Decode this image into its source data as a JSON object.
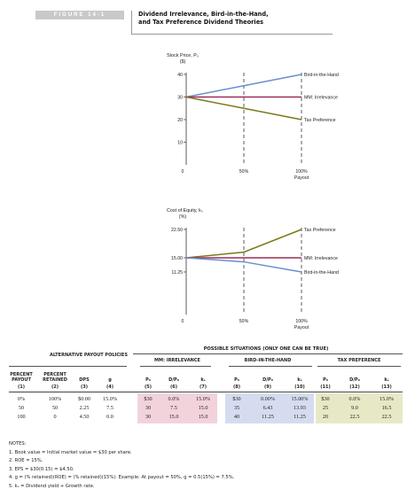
{
  "figure": {
    "badge": "FIGURE 14-1",
    "title_line1": "Dividend Irrelevance, Bird-in-the-Hand,",
    "title_line2": "and Tax Preference Dividend Theories"
  },
  "chart_data": [
    {
      "type": "line",
      "title": "",
      "ylabel_line1": "Stock Price, P₀",
      "ylabel_line2": "($)",
      "xlabel": "Payout",
      "x_ticks": [
        "0",
        "50%",
        "100%"
      ],
      "y_ticks": [
        40,
        30,
        20,
        10
      ],
      "ylim": [
        0,
        40
      ],
      "x": [
        0,
        50,
        100
      ],
      "series": [
        {
          "name": "Bird-in-the-Hand",
          "values": [
            30,
            35,
            40
          ],
          "color": "#6a8fd0"
        },
        {
          "name": "MM: Irrelevance",
          "values": [
            30,
            30,
            30
          ],
          "color": "#9b2d5a"
        },
        {
          "name": "Tax Preference",
          "values": [
            30,
            25,
            20
          ],
          "color": "#7a7a1a"
        }
      ]
    },
    {
      "type": "line",
      "title": "",
      "ylabel_line1": "Cost of Equity, kₛ",
      "ylabel_line2": "(%)",
      "xlabel": "Payout",
      "x_ticks": [
        "0",
        "50%",
        "100%"
      ],
      "y_ticks": [
        "22.50",
        "15.00",
        "11.25"
      ],
      "ylim": [
        0,
        22.5
      ],
      "x": [
        0,
        50,
        100
      ],
      "series": [
        {
          "name": "Tax Preference",
          "values": [
            15.0,
            16.5,
            22.5
          ],
          "color": "#7a7a1a"
        },
        {
          "name": "MM: Irrelevance",
          "values": [
            15.0,
            15.0,
            15.0
          ],
          "color": "#9b2d5a"
        },
        {
          "name": "Bird-in-the-Hand",
          "values": [
            15.0,
            13.93,
            11.25
          ],
          "color": "#6a8fd0"
        }
      ]
    }
  ],
  "table": {
    "super_header": "POSSIBLE SITUATIONS (ONLY ONE CAN BE TRUE)",
    "group_alt": "ALTERNATIVE PAYOUT POLICIES",
    "group_mm": "MM: IRRELEVANCE",
    "group_bird": "BIRD-IN-THE-HAND",
    "group_tax": "TAX PREFERENCE",
    "columns": [
      {
        "label": "PERCENT PAYOUT",
        "num": "(1)"
      },
      {
        "label": "PERCENT RETAINED",
        "num": "(2)"
      },
      {
        "label": "DPS",
        "num": "(3)"
      },
      {
        "label": "g",
        "num": "(4)"
      },
      {
        "label": "P₀",
        "num": "(5)"
      },
      {
        "label": "D/P₀",
        "num": "(6)"
      },
      {
        "label": "kₛ",
        "num": "(7)"
      },
      {
        "label": "P₀",
        "num": "(8)"
      },
      {
        "label": "D/P₀",
        "num": "(9)"
      },
      {
        "label": "kₛ",
        "num": "(10)"
      },
      {
        "label": "P₀",
        "num": "(11)"
      },
      {
        "label": "D/P₀",
        "num": "(12)"
      },
      {
        "label": "kₛ",
        "num": "(13)"
      }
    ],
    "rows": [
      [
        "0%",
        "100%",
        "$0.00",
        "15.0%",
        "$30",
        "0.0%",
        "15.0%",
        "$30",
        "0.00%",
        "15.00%",
        "$30",
        "0.0%",
        "15.0%"
      ],
      [
        "50",
        "50",
        "2.25",
        "7.5",
        "30",
        "7.5",
        "15.0",
        "35",
        "6.43",
        "13.93",
        "25",
        "9.0",
        "16.5"
      ],
      [
        "100",
        "0",
        "4.50",
        "0.0",
        "30",
        "15.0",
        "15.0",
        "40",
        "11.25",
        "11.25",
        "20",
        "22.5",
        "22.5"
      ]
    ],
    "colors": {
      "mm": "#f2d3dc",
      "bird": "#d6dcef",
      "tax": "#e7e9c6"
    }
  },
  "notes": {
    "heading": "NOTES:",
    "items": [
      "1. Book value = Initial market value = $30 per share.",
      "2. ROE = 15%.",
      "3. EPS = $30(0.15) = $4.50.",
      "4. g = (% retained)(ROE) = (% retained)(15%). Example: At payout = 50%, g = 0.5(15%) = 7.5%.",
      "5. kₛ = Dividend yield + Growth rate."
    ]
  }
}
